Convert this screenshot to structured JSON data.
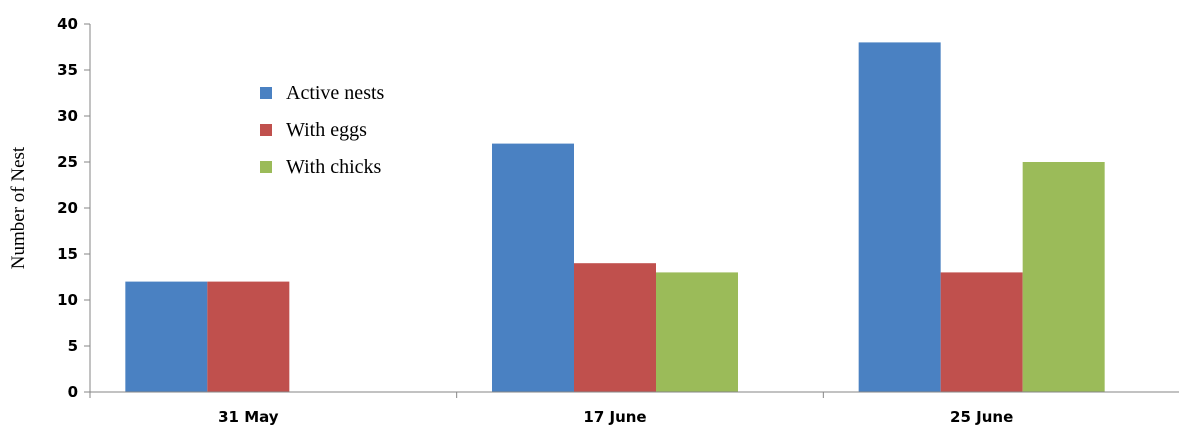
{
  "chart_data": {
    "type": "bar",
    "ylabel": "Number of Nest",
    "xlabel": "",
    "categories": [
      "31 May",
      "17 June",
      "25 June"
    ],
    "series": [
      {
        "name": "Active nests",
        "color": "#4a81c2",
        "values": [
          12,
          27,
          38
        ]
      },
      {
        "name": "With eggs",
        "color": "#c0504d",
        "values": [
          12,
          14,
          13
        ]
      },
      {
        "name": "With chicks",
        "color": "#9bbb59",
        "values": [
          0,
          13,
          25
        ]
      }
    ],
    "ylim": [
      0,
      40
    ],
    "yticks": [
      0,
      5,
      10,
      15,
      20,
      25,
      30,
      35,
      40
    ],
    "grid": false,
    "legend_position": "top-left"
  }
}
